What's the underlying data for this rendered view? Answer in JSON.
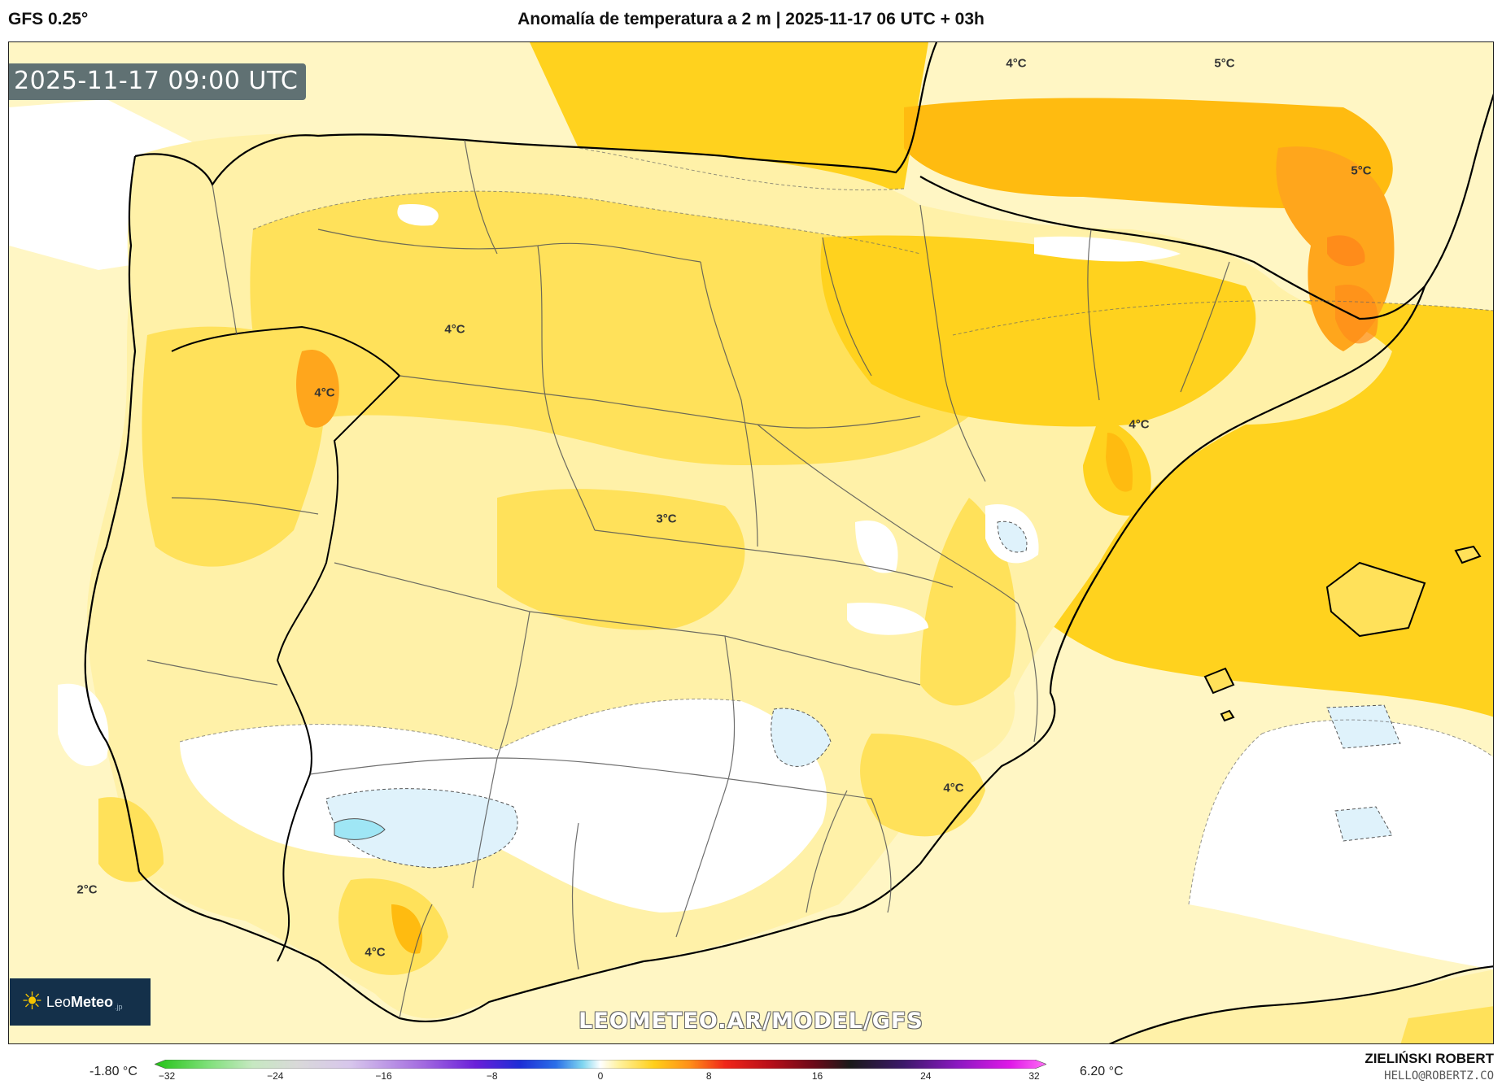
{
  "header": {
    "model": "GFS 0.25°",
    "title": "Anomalía de temperatura a 2 m | 2025-11-17 06 UTC + 03h"
  },
  "map": {
    "valid_time": "2025-11-17 09:00 UTC",
    "watermark": "LEOMETEO.AR/MODEL/GFS",
    "logo": {
      "name_regular": "Leo",
      "name_bold": "Meteo",
      "suffix": ".jp"
    },
    "contour_labels": [
      {
        "text": "4°C"
      },
      {
        "text": "5°C"
      },
      {
        "text": "5°C"
      },
      {
        "text": "4°C"
      },
      {
        "text": "4°C"
      },
      {
        "text": "4°C"
      },
      {
        "text": "3°C"
      },
      {
        "text": "4°C"
      },
      {
        "text": "2°C"
      },
      {
        "text": "4°C"
      }
    ],
    "colors": {
      "sea_base": "#fff6c4",
      "white": "#ffffff",
      "pale_blue": "#dff2fb",
      "cyan": "#9fe6f5",
      "light_yellow": "#fff1a8",
      "yellow": "#ffe15a",
      "gold": "#ffd21e",
      "amber": "#ffbb10",
      "orange": "#ffa61c",
      "deep_orange": "#ff8c1a"
    }
  },
  "colorbar": {
    "min_label": "-1.80 °C",
    "max_label": "6.20 °C",
    "ticks": [
      "−32",
      "−24",
      "−16",
      "−8",
      "0",
      "8",
      "16",
      "24",
      "32"
    ]
  },
  "credit": {
    "author": "ZIELIŃSKI ROBERT",
    "email": "HELLO@ROBERTZ.CO"
  }
}
